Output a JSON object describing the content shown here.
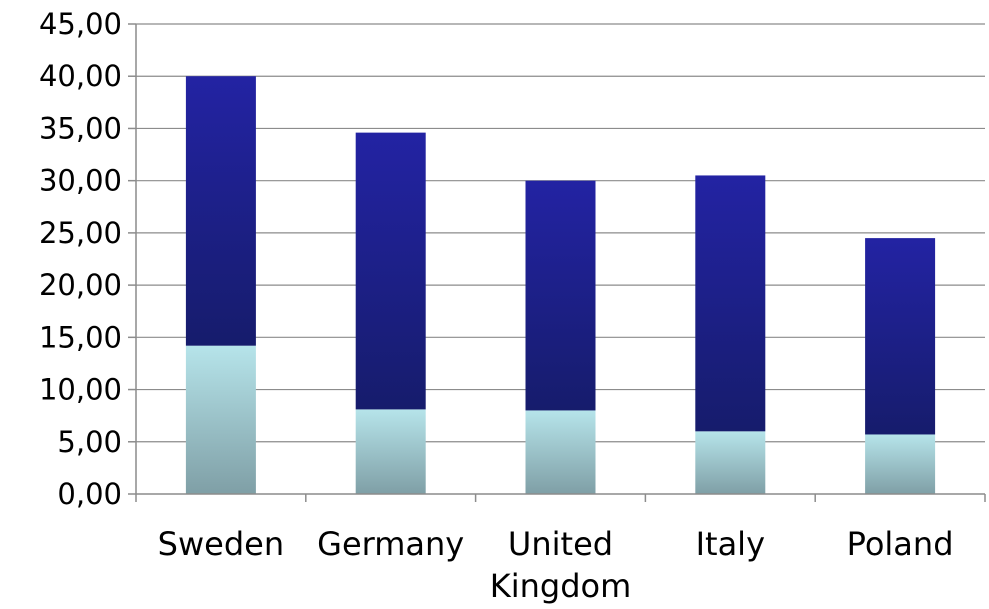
{
  "chart_data": {
    "type": "bar",
    "stacked": true,
    "categories": [
      "Sweden",
      "Germany",
      "United Kingdom",
      "Italy",
      "Poland"
    ],
    "category_label_lines": [
      [
        "Sweden"
      ],
      [
        "Germany"
      ],
      [
        "United",
        "Kingdom"
      ],
      [
        "Italy"
      ],
      [
        "Poland"
      ]
    ],
    "series": [
      {
        "values": [
          14.2,
          8.1,
          8.0,
          6.0,
          5.7
        ],
        "color_top": "#b6e4ea",
        "color_bottom": "#7f9fa6"
      },
      {
        "values": [
          25.8,
          26.5,
          22.0,
          24.5,
          18.8
        ],
        "color_top": "#2323a3",
        "color_bottom": "#161c6c"
      }
    ],
    "ylim": [
      0,
      45
    ],
    "yticks": [
      0,
      5,
      10,
      15,
      20,
      25,
      30,
      35,
      40,
      45
    ],
    "ytick_labels": [
      "0,00",
      "5,00",
      "10,00",
      "15,00",
      "20,00",
      "25,00",
      "30,00",
      "35,00",
      "40,00",
      "45,00"
    ],
    "grid": true,
    "legend": "none",
    "title": "",
    "xlabel": "",
    "ylabel": ""
  }
}
